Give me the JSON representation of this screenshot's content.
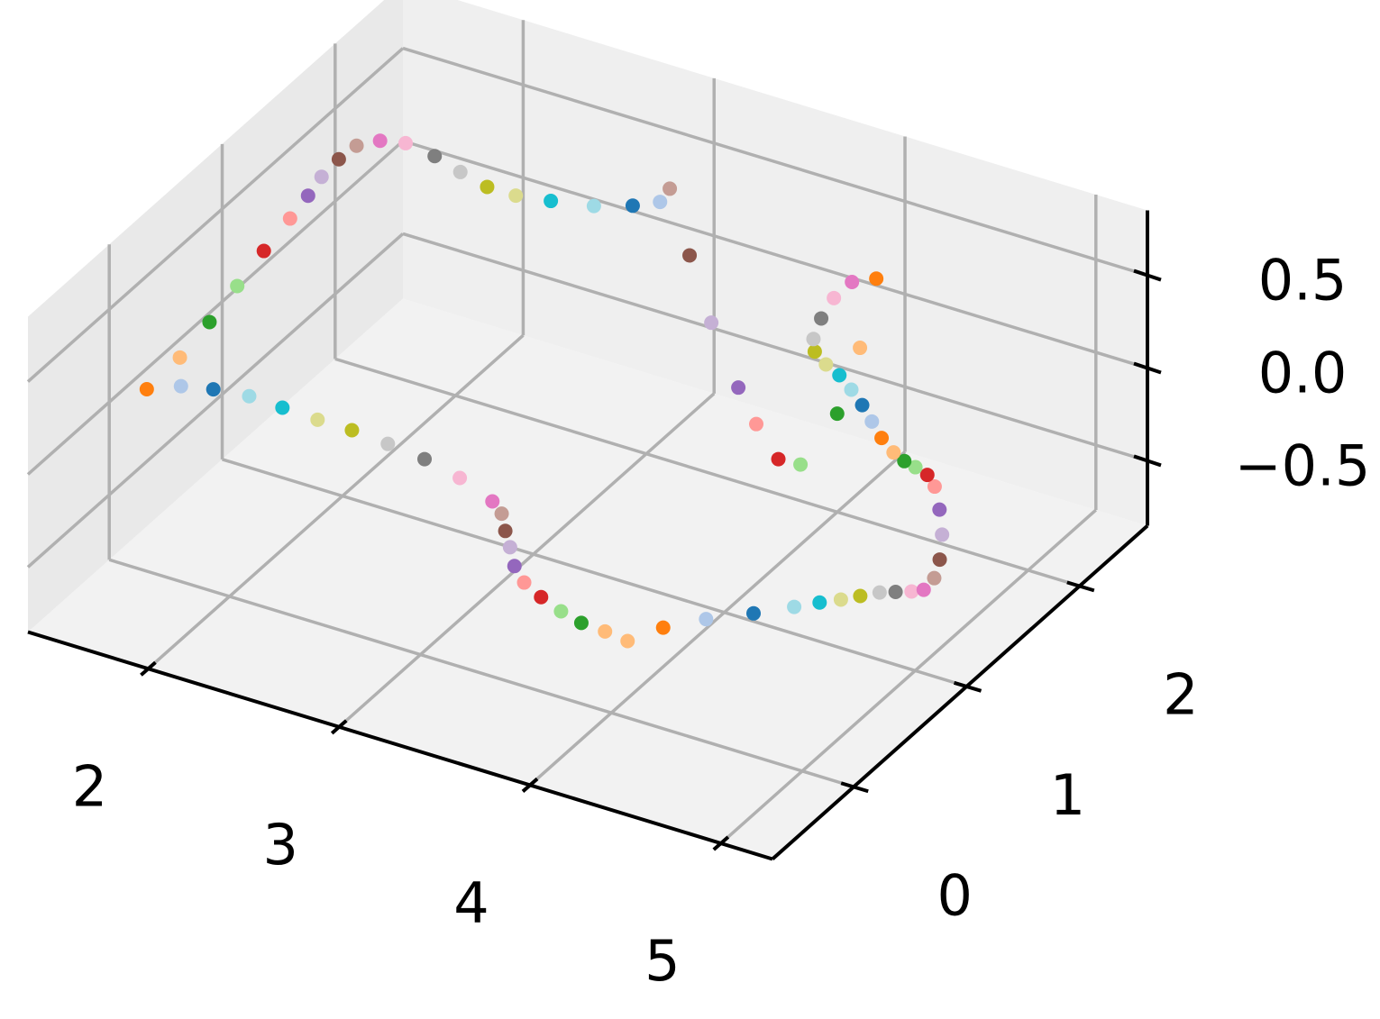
{
  "chart_data": {
    "type": "scatter",
    "projection": "3d",
    "xlim": [
      1.37,
      5.27
    ],
    "ylim": [
      -0.72,
      2.6
    ],
    "zlim": [
      -0.85,
      0.85
    ],
    "xticks": [
      2,
      3,
      4,
      5
    ],
    "yticks": [
      0,
      1,
      2
    ],
    "zticks": [
      {
        "value": -0.5,
        "label": "−0.5"
      },
      {
        "value": 0,
        "label": "0.0"
      },
      0.5
    ],
    "grid": true,
    "x": [
      1.46,
      1.58,
      1.72,
      1.89,
      2.07,
      2.26,
      2.44,
      2.64,
      2.85,
      3.07,
      3.3,
      3.39,
      3.48,
      3.57,
      3.67,
      3.78,
      3.91,
      4.05,
      4.18,
      4.31,
      4.44,
      4.52,
      4.65,
      4.81,
      4.94,
      5.02,
      5.09,
      5.15,
      5.21,
      5.27,
      5.33,
      5.37,
      5.36,
      5.3,
      5.2,
      5.08,
      4.96,
      4.88,
      4.8,
      4.73,
      4.65,
      4.54,
      4.43,
      4.32,
      4.21,
      4.1,
      4.0,
      3.9,
      3.84,
      3.78,
      3.74,
      3.74,
      3.82,
      4.06,
      4.26,
      4.34,
      4.23,
      3.99,
      3.76,
      3.37,
      2.99,
      2.62,
      2.64,
      2.55,
      2.4,
      2.21,
      2.05,
      1.9,
      1.73,
      1.56,
      1.39,
      1.28,
      1.21,
      1.2,
      1.21,
      1.24,
      1.27,
      1.31,
      1.36,
      1.41,
      1.45
    ],
    "y": [
      0.18,
      0.28,
      0.33,
      0.36,
      0.35,
      0.34,
      0.34,
      0.32,
      0.29,
      0.23,
      0.13,
      0.06,
      -0.06,
      -0.17,
      -0.3,
      -0.4,
      -0.47,
      -0.53,
      -0.57,
      -0.58,
      -0.6,
      -0.42,
      -0.26,
      -0.11,
      0.03,
      0.12,
      0.19,
      0.26,
      0.33,
      0.37,
      0.41,
      0.45,
      0.56,
      0.71,
      0.9,
      1.08,
      1.24,
      1.31,
      1.34,
      1.36,
      1.4,
      1.48,
      1.58,
      1.68,
      1.77,
      1.85,
      1.9,
      1.97,
      2.06,
      2.23,
      2.41,
      2.57,
      2.65,
      2.1,
      1.56,
      1.1,
      1.09,
      1.3,
      1.53,
      1.95,
      2.4,
      2.85,
      2.73,
      2.64,
      2.55,
      2.49,
      2.45,
      2.45,
      2.5,
      2.56,
      2.59,
      2.55,
      2.46,
      2.32,
      2.15,
      1.98,
      1.77,
      1.47,
      1.15,
      0.82,
      0.49
    ],
    "z": [
      0,
      0,
      0,
      0,
      0,
      0,
      0,
      0,
      0,
      0,
      0,
      0,
      0,
      0,
      0,
      0,
      0,
      0,
      0,
      0,
      0,
      0,
      0,
      0,
      0,
      0,
      0,
      0,
      0,
      0,
      0,
      0,
      0,
      0,
      0,
      0,
      0,
      0,
      0,
      0,
      0,
      0,
      0,
      0,
      0,
      0,
      0,
      0,
      0,
      0,
      0,
      0,
      0,
      0,
      0,
      0,
      0,
      0,
      0,
      0,
      0,
      0,
      0,
      0,
      0,
      0,
      0,
      0,
      0,
      0,
      0,
      0,
      0,
      0,
      0,
      0,
      0,
      0,
      0,
      0,
      0
    ],
    "colors": [
      "#ff7f0e",
      "#aec7e8",
      "#1f77b4",
      "#9edae5",
      "#17becf",
      "#dbdb8d",
      "#bcbd22",
      "#c7c7c7",
      "#7f7f7f",
      "#f7b6d2",
      "#e377c2",
      "#c49c94",
      "#8c564b",
      "#c5b0d5",
      "#9467bd",
      "#ff9896",
      "#d62728",
      "#98df8a",
      "#2ca02c",
      "#ffbb78",
      "#ffbb78",
      "#ff7f0e",
      "#aec7e8",
      "#1f77b4",
      "#9edae5",
      "#17becf",
      "#dbdb8d",
      "#bcbd22",
      "#c7c7c7",
      "#7f7f7f",
      "#f7b6d2",
      "#e377c2",
      "#c49c94",
      "#8c564b",
      "#c5b0d5",
      "#9467bd",
      "#ff9896",
      "#d62728",
      "#98df8a",
      "#2ca02c",
      "#ffbb78",
      "#ff7f0e",
      "#aec7e8",
      "#1f77b4",
      "#9edae5",
      "#17becf",
      "#dbdb8d",
      "#bcbd22",
      "#c7c7c7",
      "#7f7f7f",
      "#f7b6d2",
      "#e377c2",
      "#ff7f0e",
      "#ffbb78",
      "#2ca02c",
      "#98df8a",
      "#d62728",
      "#ff9896",
      "#9467bd",
      "#c5b0d5",
      "#8c564b",
      "#c49c94",
      "#aec7e8",
      "#1f77b4",
      "#9edae5",
      "#17becf",
      "#dbdb8d",
      "#bcbd22",
      "#c7c7c7",
      "#7f7f7f",
      "#f7b6d2",
      "#e377c2",
      "#c49c94",
      "#8c564b",
      "#c5b0d5",
      "#9467bd",
      "#ff9896",
      "#d62728",
      "#98df8a",
      "#2ca02c",
      "#ffbb78"
    ]
  }
}
